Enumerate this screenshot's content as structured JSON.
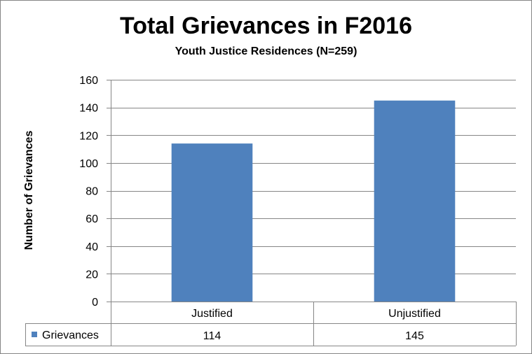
{
  "chart_data": {
    "type": "bar",
    "title": "Total Grievances in F2016",
    "subtitle": "Youth Justice Residences (N=259)",
    "xlabel": "",
    "ylabel": "Number of Grievances",
    "categories": [
      "Justified",
      "Unjustified"
    ],
    "series": [
      {
        "name": "Grievances",
        "values": [
          114,
          145
        ],
        "color": "#4F81BD"
      }
    ],
    "ylim": [
      0,
      160
    ],
    "yticks": [
      "0",
      "20",
      "40",
      "60",
      "80",
      "100",
      "120",
      "140",
      "160"
    ],
    "grid": true,
    "legend": "data-table-left",
    "data_table": {
      "row_label": "Grievances",
      "values": [
        "114",
        "145"
      ]
    }
  }
}
